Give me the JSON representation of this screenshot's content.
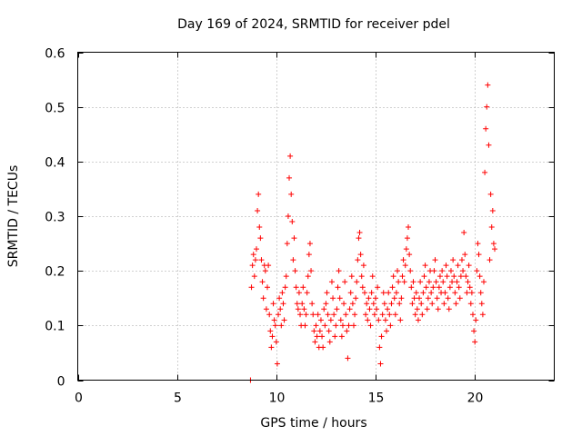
{
  "chart_data": {
    "type": "scatter",
    "title": "Day 169 of 2024, SRMTID for receiver pdel",
    "xlabel": "GPS time / hours",
    "ylabel": "SRMTID / TECUs",
    "xlim": [
      0,
      24
    ],
    "ylim": [
      0,
      0.6
    ],
    "xticks": [
      0,
      5,
      10,
      15,
      20
    ],
    "xtick_labels": [
      "0",
      "5",
      "10",
      "15",
      "20"
    ],
    "yticks": [
      0,
      0.1,
      0.2,
      0.3,
      0.4,
      0.5,
      0.6
    ],
    "ytick_labels": [
      "0",
      "0.1",
      "0.2",
      "0.3",
      "0.4",
      "0.5",
      "0.6"
    ],
    "grid": true,
    "marker": "+",
    "color": "#ff0000",
    "series": [
      {
        "name": "pdel",
        "points": [
          [
            8.7,
            0.0
          ],
          [
            8.75,
            0.17
          ],
          [
            8.8,
            0.21
          ],
          [
            8.85,
            0.23
          ],
          [
            8.9,
            0.19
          ],
          [
            8.95,
            0.22
          ],
          [
            9.0,
            0.24
          ],
          [
            9.05,
            0.31
          ],
          [
            9.1,
            0.34
          ],
          [
            9.15,
            0.28
          ],
          [
            9.2,
            0.26
          ],
          [
            9.25,
            0.22
          ],
          [
            9.3,
            0.18
          ],
          [
            9.35,
            0.15
          ],
          [
            9.4,
            0.21
          ],
          [
            9.45,
            0.2
          ],
          [
            9.5,
            0.13
          ],
          [
            9.55,
            0.17
          ],
          [
            9.6,
            0.21
          ],
          [
            9.65,
            0.12
          ],
          [
            9.7,
            0.09
          ],
          [
            9.75,
            0.06
          ],
          [
            9.8,
            0.08
          ],
          [
            9.85,
            0.14
          ],
          [
            9.9,
            0.11
          ],
          [
            9.95,
            0.1
          ],
          [
            10.0,
            0.07
          ],
          [
            10.05,
            0.03
          ],
          [
            10.1,
            0.12
          ],
          [
            10.15,
            0.15
          ],
          [
            10.2,
            0.13
          ],
          [
            10.25,
            0.1
          ],
          [
            10.3,
            0.16
          ],
          [
            10.35,
            0.14
          ],
          [
            10.4,
            0.11
          ],
          [
            10.45,
            0.17
          ],
          [
            10.5,
            0.19
          ],
          [
            10.55,
            0.25
          ],
          [
            10.6,
            0.3
          ],
          [
            10.65,
            0.37
          ],
          [
            10.7,
            0.41
          ],
          [
            10.75,
            0.34
          ],
          [
            10.8,
            0.29
          ],
          [
            10.85,
            0.22
          ],
          [
            10.9,
            0.26
          ],
          [
            10.95,
            0.2
          ],
          [
            11.0,
            0.17
          ],
          [
            11.05,
            0.14
          ],
          [
            11.1,
            0.13
          ],
          [
            11.15,
            0.16
          ],
          [
            11.2,
            0.12
          ],
          [
            11.25,
            0.1
          ],
          [
            11.3,
            0.14
          ],
          [
            11.35,
            0.17
          ],
          [
            11.4,
            0.13
          ],
          [
            11.45,
            0.1
          ],
          [
            11.5,
            0.12
          ],
          [
            11.55,
            0.16
          ],
          [
            11.6,
            0.19
          ],
          [
            11.65,
            0.23
          ],
          [
            11.7,
            0.25
          ],
          [
            11.75,
            0.2
          ],
          [
            11.8,
            0.14
          ],
          [
            11.85,
            0.12
          ],
          [
            11.9,
            0.09
          ],
          [
            11.95,
            0.07
          ],
          [
            12.0,
            0.1
          ],
          [
            12.05,
            0.08
          ],
          [
            12.1,
            0.12
          ],
          [
            12.15,
            0.06
          ],
          [
            12.2,
            0.09
          ],
          [
            12.25,
            0.11
          ],
          [
            12.3,
            0.08
          ],
          [
            12.35,
            0.06
          ],
          [
            12.4,
            0.13
          ],
          [
            12.45,
            0.1
          ],
          [
            12.5,
            0.14
          ],
          [
            12.55,
            0.16
          ],
          [
            12.6,
            0.12
          ],
          [
            12.65,
            0.09
          ],
          [
            12.7,
            0.07
          ],
          [
            12.75,
            0.11
          ],
          [
            12.8,
            0.18
          ],
          [
            12.85,
            0.15
          ],
          [
            12.9,
            0.12
          ],
          [
            12.95,
            0.08
          ],
          [
            13.0,
            0.1
          ],
          [
            13.05,
            0.13
          ],
          [
            13.1,
            0.17
          ],
          [
            13.15,
            0.2
          ],
          [
            13.2,
            0.15
          ],
          [
            13.25,
            0.11
          ],
          [
            13.3,
            0.08
          ],
          [
            13.35,
            0.1
          ],
          [
            13.4,
            0.14
          ],
          [
            13.45,
            0.18
          ],
          [
            13.5,
            0.12
          ],
          [
            13.55,
            0.09
          ],
          [
            13.6,
            0.04
          ],
          [
            13.65,
            0.1
          ],
          [
            13.7,
            0.13
          ],
          [
            13.75,
            0.16
          ],
          [
            13.8,
            0.19
          ],
          [
            13.85,
            0.14
          ],
          [
            13.9,
            0.1
          ],
          [
            13.95,
            0.12
          ],
          [
            14.0,
            0.15
          ],
          [
            14.05,
            0.18
          ],
          [
            14.1,
            0.22
          ],
          [
            14.15,
            0.26
          ],
          [
            14.2,
            0.27
          ],
          [
            14.25,
            0.23
          ],
          [
            14.3,
            0.19
          ],
          [
            14.35,
            0.17
          ],
          [
            14.4,
            0.21
          ],
          [
            14.45,
            0.16
          ],
          [
            14.5,
            0.12
          ],
          [
            14.55,
            0.14
          ],
          [
            14.6,
            0.11
          ],
          [
            14.65,
            0.15
          ],
          [
            14.7,
            0.13
          ],
          [
            14.75,
            0.1
          ],
          [
            14.8,
            0.16
          ],
          [
            14.85,
            0.19
          ],
          [
            14.9,
            0.14
          ],
          [
            14.95,
            0.12
          ],
          [
            15.0,
            0.15
          ],
          [
            15.05,
            0.13
          ],
          [
            15.1,
            0.17
          ],
          [
            15.15,
            0.11
          ],
          [
            15.2,
            0.06
          ],
          [
            15.25,
            0.03
          ],
          [
            15.3,
            0.08
          ],
          [
            15.35,
            0.12
          ],
          [
            15.4,
            0.16
          ],
          [
            15.45,
            0.14
          ],
          [
            15.5,
            0.11
          ],
          [
            15.55,
            0.09
          ],
          [
            15.6,
            0.13
          ],
          [
            15.65,
            0.16
          ],
          [
            15.7,
            0.12
          ],
          [
            15.75,
            0.1
          ],
          [
            15.8,
            0.14
          ],
          [
            15.85,
            0.17
          ],
          [
            15.9,
            0.19
          ],
          [
            15.95,
            0.15
          ],
          [
            16.0,
            0.12
          ],
          [
            16.05,
            0.16
          ],
          [
            16.1,
            0.2
          ],
          [
            16.15,
            0.18
          ],
          [
            16.2,
            0.14
          ],
          [
            16.25,
            0.11
          ],
          [
            16.3,
            0.15
          ],
          [
            16.35,
            0.19
          ],
          [
            16.4,
            0.22
          ],
          [
            16.45,
            0.18
          ],
          [
            16.5,
            0.21
          ],
          [
            16.55,
            0.24
          ],
          [
            16.6,
            0.26
          ],
          [
            16.65,
            0.28
          ],
          [
            16.7,
            0.23
          ],
          [
            16.75,
            0.2
          ],
          [
            16.8,
            0.17
          ],
          [
            16.85,
            0.14
          ],
          [
            16.9,
            0.18
          ],
          [
            16.95,
            0.15
          ],
          [
            17.0,
            0.12
          ],
          [
            17.05,
            0.16
          ],
          [
            17.1,
            0.13
          ],
          [
            17.15,
            0.11
          ],
          [
            17.2,
            0.15
          ],
          [
            17.25,
            0.18
          ],
          [
            17.3,
            0.14
          ],
          [
            17.35,
            0.12
          ],
          [
            17.4,
            0.16
          ],
          [
            17.45,
            0.19
          ],
          [
            17.5,
            0.21
          ],
          [
            17.55,
            0.17
          ],
          [
            17.6,
            0.13
          ],
          [
            17.65,
            0.15
          ],
          [
            17.7,
            0.18
          ],
          [
            17.75,
            0.2
          ],
          [
            17.8,
            0.16
          ],
          [
            17.85,
            0.14
          ],
          [
            17.9,
            0.17
          ],
          [
            17.95,
            0.2
          ],
          [
            18.0,
            0.22
          ],
          [
            18.05,
            0.18
          ],
          [
            18.1,
            0.15
          ],
          [
            18.15,
            0.13
          ],
          [
            18.2,
            0.17
          ],
          [
            18.25,
            0.19
          ],
          [
            18.3,
            0.16
          ],
          [
            18.35,
            0.2
          ],
          [
            18.4,
            0.18
          ],
          [
            18.45,
            0.14
          ],
          [
            18.5,
            0.16
          ],
          [
            18.55,
            0.21
          ],
          [
            18.6,
            0.19
          ],
          [
            18.65,
            0.15
          ],
          [
            18.7,
            0.13
          ],
          [
            18.75,
            0.17
          ],
          [
            18.8,
            0.2
          ],
          [
            18.85,
            0.18
          ],
          [
            18.9,
            0.22
          ],
          [
            18.95,
            0.19
          ],
          [
            19.0,
            0.16
          ],
          [
            19.05,
            0.14
          ],
          [
            19.1,
            0.18
          ],
          [
            19.15,
            0.21
          ],
          [
            19.2,
            0.17
          ],
          [
            19.25,
            0.15
          ],
          [
            19.3,
            0.19
          ],
          [
            19.35,
            0.22
          ],
          [
            19.4,
            0.2
          ],
          [
            19.45,
            0.27
          ],
          [
            19.5,
            0.23
          ],
          [
            19.55,
            0.19
          ],
          [
            19.6,
            0.16
          ],
          [
            19.65,
            0.18
          ],
          [
            19.7,
            0.21
          ],
          [
            19.75,
            0.17
          ],
          [
            19.8,
            0.14
          ],
          [
            19.85,
            0.16
          ],
          [
            19.9,
            0.12
          ],
          [
            19.95,
            0.09
          ],
          [
            20.0,
            0.07
          ],
          [
            20.05,
            0.11
          ],
          [
            20.1,
            0.2
          ],
          [
            20.15,
            0.25
          ],
          [
            20.2,
            0.23
          ],
          [
            20.25,
            0.19
          ],
          [
            20.3,
            0.16
          ],
          [
            20.35,
            0.14
          ],
          [
            20.4,
            0.12
          ],
          [
            20.45,
            0.18
          ],
          [
            20.5,
            0.38
          ],
          [
            20.55,
            0.46
          ],
          [
            20.6,
            0.5
          ],
          [
            20.65,
            0.54
          ],
          [
            20.7,
            0.43
          ],
          [
            20.75,
            0.22
          ],
          [
            20.8,
            0.34
          ],
          [
            20.85,
            0.28
          ],
          [
            20.9,
            0.31
          ],
          [
            20.95,
            0.25
          ],
          [
            21.0,
            0.24
          ]
        ]
      }
    ]
  }
}
